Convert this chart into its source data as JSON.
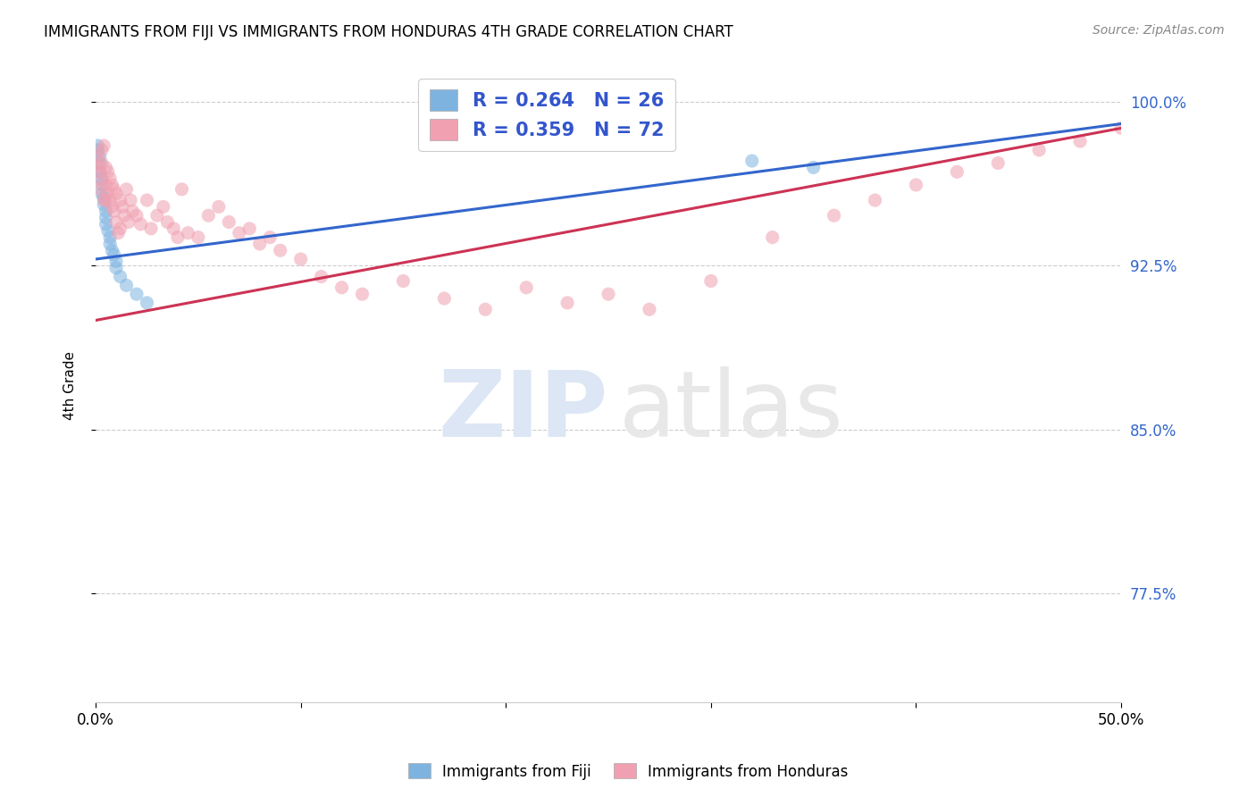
{
  "title": "IMMIGRANTS FROM FIJI VS IMMIGRANTS FROM HONDURAS 4TH GRADE CORRELATION CHART",
  "source": "Source: ZipAtlas.com",
  "ylabel": "4th Grade",
  "xlim": [
    0.0,
    0.5
  ],
  "ylim": [
    0.725,
    1.015
  ],
  "right_ytick_positions": [
    0.775,
    0.85,
    0.925,
    1.0
  ],
  "right_ytick_labels": [
    "77.5%",
    "85.0%",
    "92.5%",
    "100.0%"
  ],
  "xtick_positions": [
    0.0,
    0.1,
    0.2,
    0.3,
    0.4,
    0.5
  ],
  "xtick_labels": [
    "0.0%",
    "",
    "",
    "",
    "",
    "50.0%"
  ],
  "fiji_color": "#7eb3e0",
  "honduras_color": "#f0a0b0",
  "fiji_line_color": "#3366cc",
  "honduras_line_color": "#cc3355",
  "background_color": "#ffffff",
  "fiji_R": 0.264,
  "fiji_N": 26,
  "honduras_R": 0.359,
  "honduras_N": 72,
  "fiji_x": [
    0.001,
    0.001,
    0.002,
    0.002,
    0.002,
    0.003,
    0.003,
    0.003,
    0.004,
    0.004,
    0.005,
    0.005,
    0.005,
    0.006,
    0.007,
    0.007,
    0.008,
    0.009,
    0.01,
    0.01,
    0.012,
    0.015,
    0.02,
    0.025,
    0.32,
    0.35
  ],
  "fiji_y": [
    0.98,
    0.978,
    0.975,
    0.972,
    0.968,
    0.965,
    0.962,
    0.958,
    0.956,
    0.953,
    0.95,
    0.947,
    0.944,
    0.941,
    0.938,
    0.935,
    0.932,
    0.93,
    0.927,
    0.924,
    0.92,
    0.916,
    0.912,
    0.908,
    0.973,
    0.97
  ],
  "honduras_x": [
    0.001,
    0.001,
    0.002,
    0.002,
    0.003,
    0.003,
    0.003,
    0.004,
    0.004,
    0.005,
    0.005,
    0.005,
    0.006,
    0.006,
    0.007,
    0.007,
    0.008,
    0.008,
    0.009,
    0.009,
    0.01,
    0.01,
    0.011,
    0.012,
    0.012,
    0.013,
    0.014,
    0.015,
    0.016,
    0.017,
    0.018,
    0.02,
    0.022,
    0.025,
    0.027,
    0.03,
    0.033,
    0.035,
    0.038,
    0.04,
    0.042,
    0.045,
    0.05,
    0.055,
    0.06,
    0.065,
    0.07,
    0.075,
    0.08,
    0.085,
    0.09,
    0.1,
    0.11,
    0.12,
    0.13,
    0.15,
    0.17,
    0.19,
    0.21,
    0.23,
    0.25,
    0.27,
    0.3,
    0.33,
    0.36,
    0.38,
    0.4,
    0.42,
    0.44,
    0.46,
    0.48,
    0.5
  ],
  "honduras_y": [
    0.975,
    0.97,
    0.968,
    0.96,
    0.978,
    0.972,
    0.964,
    0.98,
    0.955,
    0.97,
    0.962,
    0.955,
    0.968,
    0.958,
    0.965,
    0.955,
    0.962,
    0.952,
    0.96,
    0.95,
    0.958,
    0.945,
    0.94,
    0.955,
    0.942,
    0.952,
    0.948,
    0.96,
    0.945,
    0.955,
    0.95,
    0.948,
    0.944,
    0.955,
    0.942,
    0.948,
    0.952,
    0.945,
    0.942,
    0.938,
    0.96,
    0.94,
    0.938,
    0.948,
    0.952,
    0.945,
    0.94,
    0.942,
    0.935,
    0.938,
    0.932,
    0.928,
    0.92,
    0.915,
    0.912,
    0.918,
    0.91,
    0.905,
    0.915,
    0.908,
    0.912,
    0.905,
    0.918,
    0.938,
    0.948,
    0.955,
    0.962,
    0.968,
    0.972,
    0.978,
    0.982,
    0.988
  ],
  "blue_line_x": [
    0.0,
    0.5
  ],
  "blue_line_y": [
    0.928,
    0.99
  ],
  "pink_line_x": [
    0.0,
    0.5
  ],
  "pink_line_y": [
    0.9,
    0.988
  ]
}
